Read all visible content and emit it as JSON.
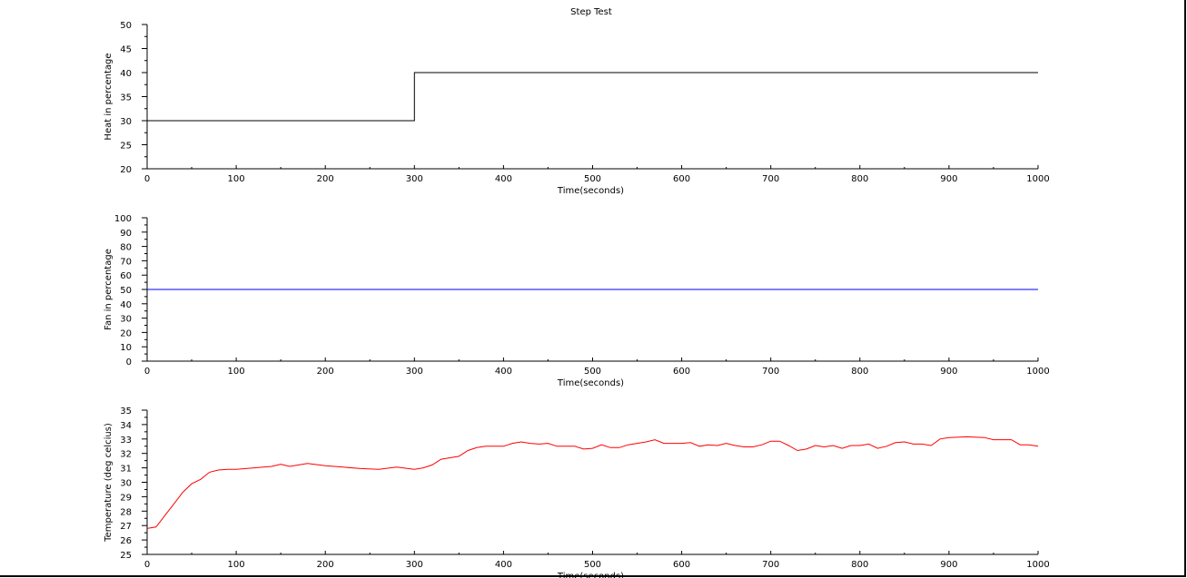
{
  "figure_title": "Step Test",
  "chart_data": [
    {
      "type": "line",
      "title": "Step Test",
      "xlabel": "Time(seconds)",
      "ylabel": "Heat in percentage",
      "xlim": [
        0,
        1000
      ],
      "ylim": [
        20,
        50
      ],
      "xticks": [
        0,
        100,
        200,
        300,
        400,
        500,
        600,
        700,
        800,
        900,
        1000
      ],
      "yticks": [
        20,
        25,
        30,
        35,
        40,
        45,
        50
      ],
      "grid": false,
      "color": "#000000",
      "x": [
        0,
        300,
        300,
        1000
      ],
      "y": [
        30,
        30,
        40,
        40
      ]
    },
    {
      "type": "line",
      "xlabel": "Time(seconds)",
      "ylabel": "Fan in percentage",
      "xlim": [
        0,
        1000
      ],
      "ylim": [
        0,
        100
      ],
      "xticks": [
        0,
        100,
        200,
        300,
        400,
        500,
        600,
        700,
        800,
        900,
        1000
      ],
      "yticks": [
        0,
        10,
        20,
        30,
        40,
        50,
        60,
        70,
        80,
        90,
        100
      ],
      "grid": false,
      "color": "#0000ff",
      "x": [
        0,
        1000
      ],
      "y": [
        50,
        50
      ]
    },
    {
      "type": "line",
      "xlabel": "Time(seconds)",
      "ylabel": "Temperature (deg celcius)",
      "xlim": [
        0,
        1000
      ],
      "ylim": [
        25,
        35
      ],
      "xticks": [
        0,
        100,
        200,
        300,
        400,
        500,
        600,
        700,
        800,
        900,
        1000
      ],
      "yticks": [
        25,
        26,
        27,
        28,
        29,
        30,
        31,
        32,
        33,
        34,
        35
      ],
      "grid": false,
      "color": "#ff0000",
      "x": [
        0,
        10,
        20,
        30,
        40,
        50,
        60,
        70,
        80,
        90,
        100,
        120,
        140,
        150,
        160,
        180,
        200,
        220,
        240,
        260,
        280,
        300,
        310,
        320,
        330,
        340,
        350,
        360,
        370,
        380,
        400,
        410,
        420,
        430,
        440,
        450,
        460,
        480,
        490,
        500,
        510,
        520,
        530,
        540,
        550,
        560,
        570,
        580,
        600,
        610,
        620,
        630,
        640,
        650,
        660,
        670,
        680,
        690,
        700,
        710,
        720,
        730,
        740,
        750,
        760,
        770,
        780,
        790,
        800,
        810,
        820,
        830,
        840,
        850,
        860,
        870,
        880,
        890,
        900,
        920,
        940,
        950,
        970,
        980,
        990,
        1000
      ],
      "y": [
        26.8,
        26.9,
        27.7,
        28.5,
        29.3,
        29.9,
        30.2,
        30.7,
        30.85,
        30.9,
        30.9,
        31.0,
        31.1,
        31.25,
        31.1,
        31.3,
        31.15,
        31.05,
        30.95,
        30.9,
        31.05,
        30.9,
        31.0,
        31.2,
        31.6,
        31.7,
        31.8,
        32.2,
        32.4,
        32.5,
        32.5,
        32.7,
        32.8,
        32.7,
        32.65,
        32.7,
        32.5,
        32.5,
        32.3,
        32.35,
        32.6,
        32.4,
        32.4,
        32.6,
        32.7,
        32.8,
        32.95,
        32.7,
        32.7,
        32.75,
        32.5,
        32.6,
        32.55,
        32.7,
        32.55,
        32.45,
        32.45,
        32.6,
        32.85,
        32.85,
        32.55,
        32.2,
        32.3,
        32.55,
        32.45,
        32.55,
        32.35,
        32.55,
        32.55,
        32.65,
        32.35,
        32.5,
        32.75,
        32.8,
        32.65,
        32.65,
        32.55,
        33.0,
        33.1,
        33.15,
        33.1,
        32.95,
        32.95,
        32.6,
        32.6,
        32.5
      ]
    }
  ]
}
